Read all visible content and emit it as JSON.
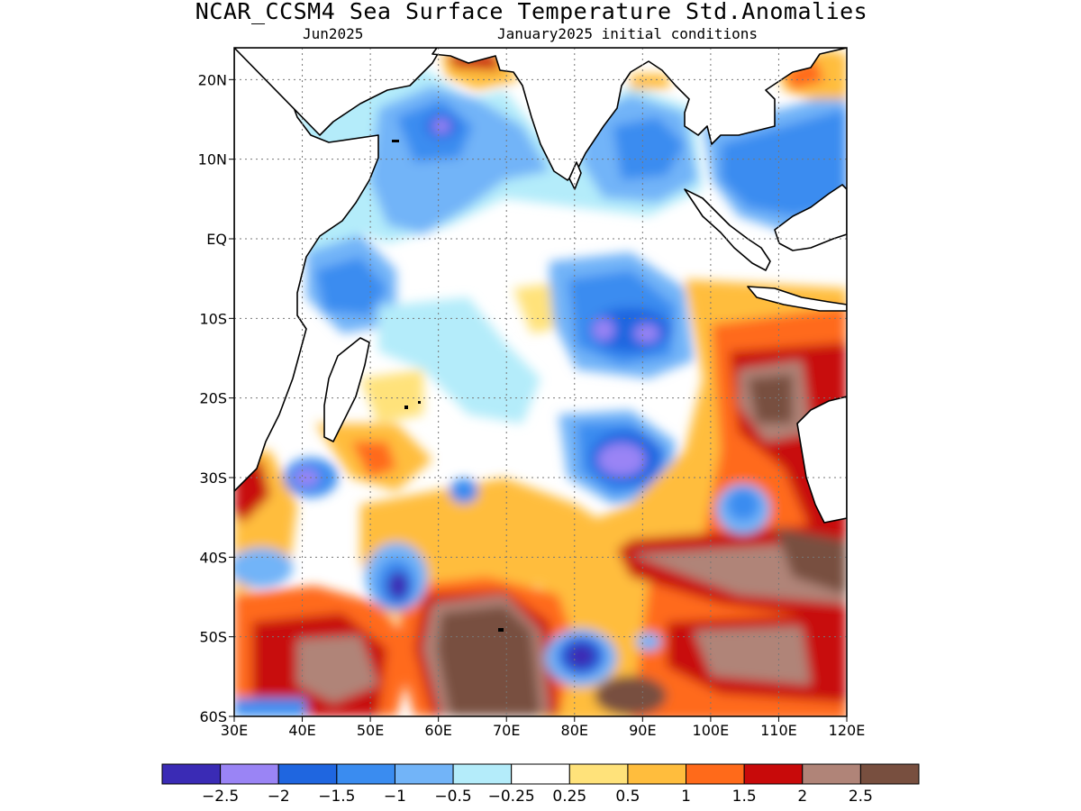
{
  "header": {
    "title": "NCAR_CCSM4 Sea Surface Temperature Std.Anomalies",
    "valid_month": "Jun2025",
    "initial_conditions": "January2025 initial conditions"
  },
  "map": {
    "projection": "lat-lon",
    "lon_range": [
      30,
      120
    ],
    "lat_range": [
      -60,
      24
    ],
    "lon_ticks": [
      "30E",
      "40E",
      "50E",
      "60E",
      "70E",
      "80E",
      "90E",
      "100E",
      "110E",
      "120E"
    ],
    "lat_ticks": [
      "20N",
      "10N",
      "EQ",
      "10S",
      "20S",
      "30S",
      "40S",
      "50S",
      "60S"
    ],
    "grid": "dotted",
    "coastlines": true
  },
  "colorbar": {
    "colors": [
      "#3a2bb5",
      "#9a84f5",
      "#1f66e0",
      "#3a8cf0",
      "#72b4f8",
      "#b4ecfa",
      "#ffffff",
      "#ffe27a",
      "#ffbd3d",
      "#ff6a1a",
      "#c80a0a",
      "#b08478",
      "#784f3f"
    ],
    "labels": [
      "−2.5",
      "−2",
      "−1.5",
      "−1",
      "−0.5",
      "−0.25",
      "0.25",
      "0.5",
      "1",
      "1.5",
      "2",
      "2.5"
    ]
  }
}
